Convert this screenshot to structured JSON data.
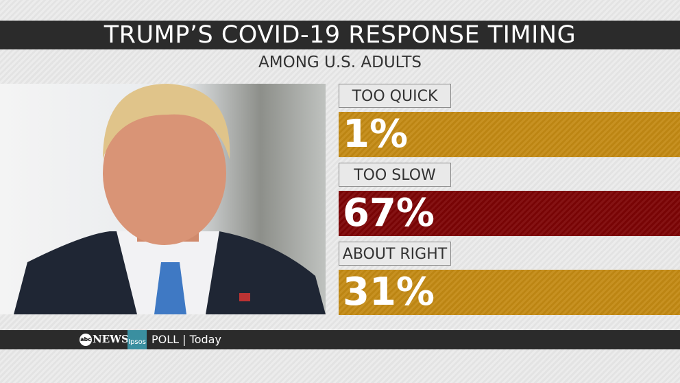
{
  "header": {
    "title": "TRUMP’S COVID-19 RESPONSE TIMING",
    "subtitle": "AMONG U.S. ADULTS"
  },
  "items": [
    {
      "label": "TOO QUICK",
      "value": "1%",
      "color": "#c48a14"
    },
    {
      "label": "TOO SLOW",
      "value": "67%",
      "color": "#7d0405"
    },
    {
      "label": "ABOUT RIGHT",
      "value": "31%",
      "color": "#c48a14"
    }
  ],
  "footer": {
    "logo": "abc",
    "network": "NEWS",
    "partner": "Ipsos",
    "poll": "POLL | Today"
  }
}
